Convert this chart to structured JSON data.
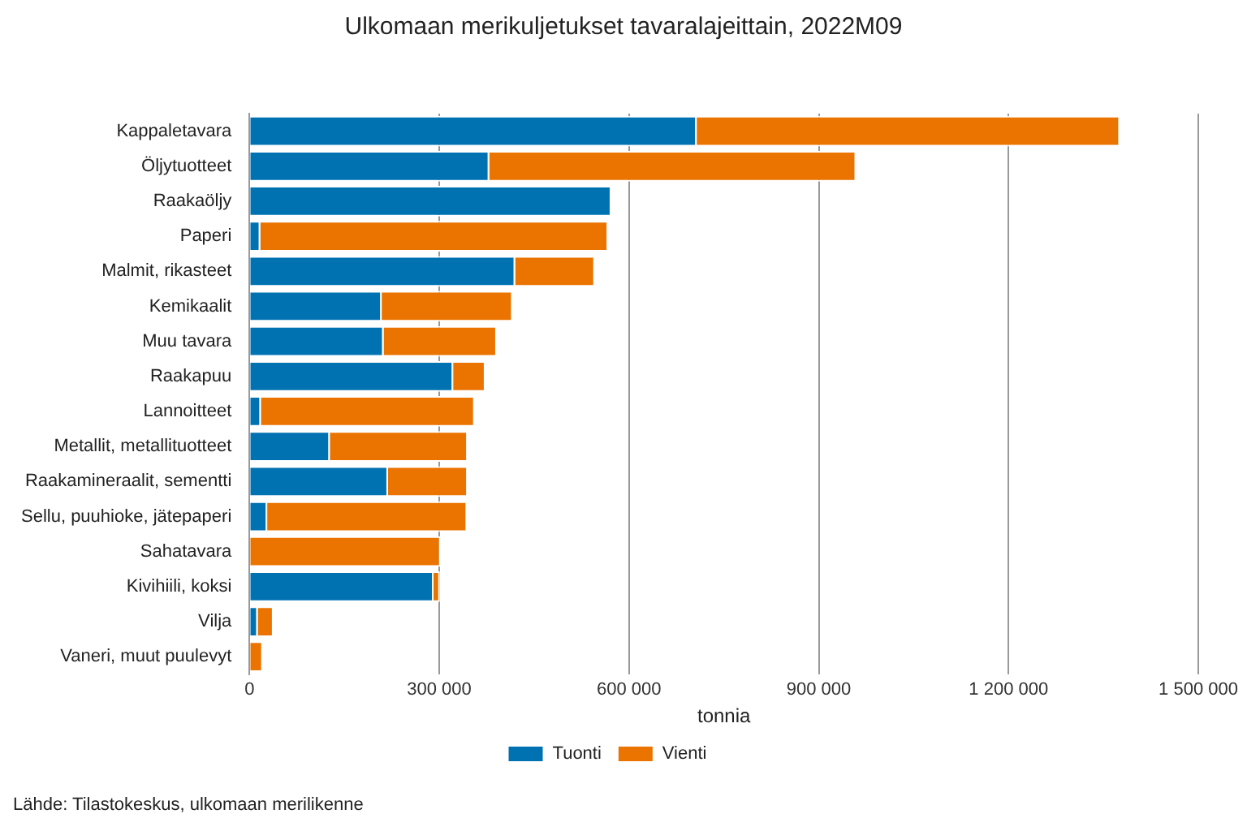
{
  "chart_data": {
    "type": "bar",
    "orientation": "horizontal",
    "stacked": true,
    "title": "Ulkomaan merikuljetukset tavaralajeittain, 2022M09",
    "xlabel": "tonnia",
    "categories": [
      "Kappaletavara",
      "Öljytuotteet",
      "Raakaöljy",
      "Paperi",
      "Malmit, rikasteet",
      "Kemikaalit",
      "Muu tavara",
      "Raakapuu",
      "Lannoitteet",
      "Metallit, metallituotteet",
      "Raakamineraalit, sementti",
      "Sellu, puuhioke, jätepaperi",
      "Sahatavara",
      "Kivihiili, koksi",
      "Vilja",
      "Vaneri, muut puulevyt"
    ],
    "series": [
      {
        "name": "Tuonti",
        "color": "#0072b2",
        "values": [
          707000,
          379000,
          572000,
          17000,
          420000,
          209000,
          212000,
          322000,
          18000,
          127000,
          219000,
          28000,
          0,
          291000,
          13000,
          0
        ]
      },
      {
        "name": "Vienti",
        "color": "#eb7300",
        "values": [
          669000,
          580000,
          0,
          550000,
          126000,
          207000,
          179000,
          51000,
          338000,
          218000,
          126000,
          316000,
          302000,
          10000,
          25000,
          21000
        ]
      }
    ],
    "xlim": [
      0,
      1500000
    ],
    "xticks": [
      {
        "value": 0,
        "label": "0"
      },
      {
        "value": 300000,
        "label": "300 000"
      },
      {
        "value": 600000,
        "label": "600 000"
      },
      {
        "value": 900000,
        "label": "900 000"
      },
      {
        "value": 1200000,
        "label": "1 200 000"
      },
      {
        "value": 1500000,
        "label": "1 500 000"
      }
    ],
    "grid": "x",
    "legend": "bottom",
    "annotations": [
      "Lähde: Tilastokeskus, ulkomaan merilikenne"
    ]
  }
}
